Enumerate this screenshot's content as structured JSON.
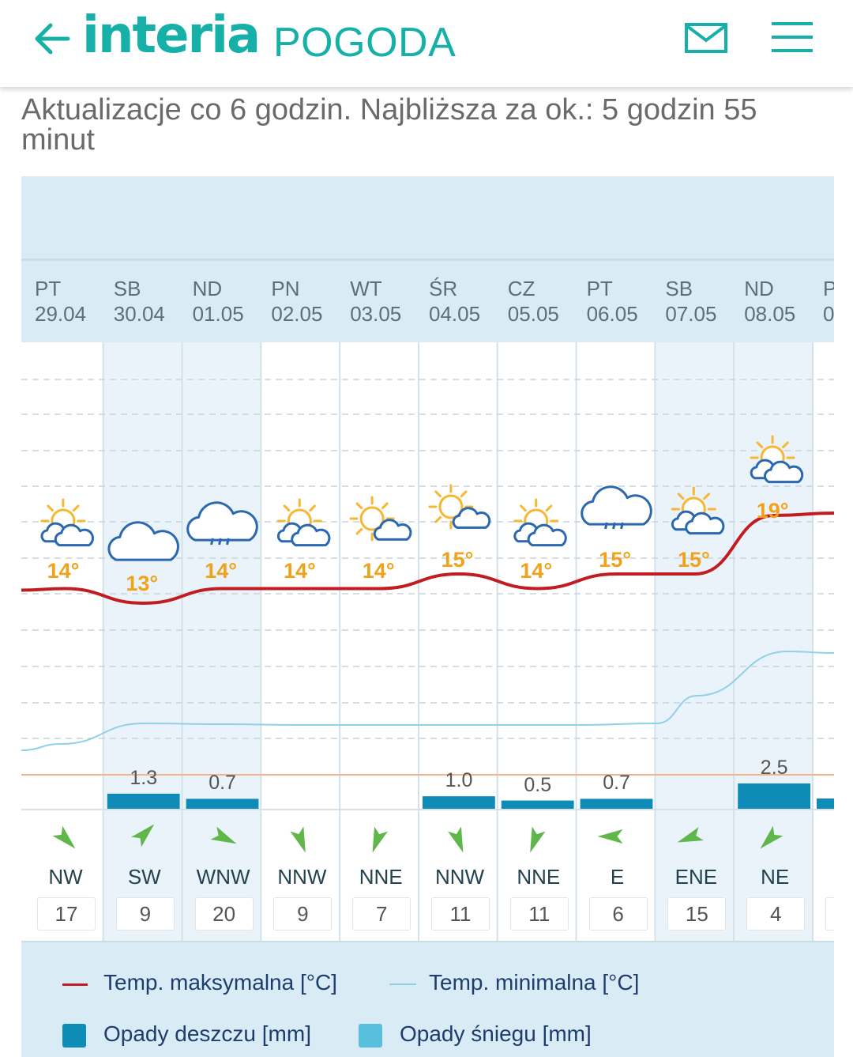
{
  "header": {
    "back_label": "←",
    "logo_text": "interia",
    "logo_suffix": "POGODA"
  },
  "update_text": "Aktualizacje co 6 godzin. Najbliższa za ok.: 5 godzin 55 minut",
  "colors": {
    "brand": "#17b0a9",
    "temp_max": "#c21c23",
    "temp_min": "#8fd0ea",
    "rain": "#0e8bb6",
    "snow": "#58bfdc",
    "temp_label": "#f0a21a"
  },
  "days": [
    {
      "dow": "PT",
      "date": "29.04",
      "icon": "sun-cloud-icon",
      "temp_label": "14°",
      "precip": "",
      "wind_dir": "NW",
      "wind_speed": "17"
    },
    {
      "dow": "SB",
      "date": "30.04",
      "icon": "cloud-icon",
      "temp_label": "13°",
      "precip": "1.3",
      "wind_dir": "SW",
      "wind_speed": "9"
    },
    {
      "dow": "ND",
      "date": "01.05",
      "icon": "rain-cloud-icon",
      "temp_label": "14°",
      "precip": "0.7",
      "wind_dir": "WNW",
      "wind_speed": "20"
    },
    {
      "dow": "PN",
      "date": "02.05",
      "icon": "sun-cloud-icon",
      "temp_label": "14°",
      "precip": "",
      "wind_dir": "NNW",
      "wind_speed": "9"
    },
    {
      "dow": "WT",
      "date": "03.05",
      "icon": "sun-small-cloud-icon",
      "temp_label": "14°",
      "precip": "",
      "wind_dir": "NNE",
      "wind_speed": "7"
    },
    {
      "dow": "ŚR",
      "date": "04.05",
      "icon": "sun-small-cloud-icon",
      "temp_label": "15°",
      "precip": "1.0",
      "wind_dir": "NNW",
      "wind_speed": "11"
    },
    {
      "dow": "CZ",
      "date": "05.05",
      "icon": "sun-cloud-icon",
      "temp_label": "14°",
      "precip": "0.5",
      "wind_dir": "NNE",
      "wind_speed": "11"
    },
    {
      "dow": "PT",
      "date": "06.05",
      "icon": "rain-cloud-icon",
      "temp_label": "15°",
      "precip": "0.7",
      "wind_dir": "E",
      "wind_speed": "6"
    },
    {
      "dow": "SB",
      "date": "07.05",
      "icon": "sun-cloud-icon",
      "temp_label": "15°",
      "precip": "",
      "wind_dir": "ENE",
      "wind_speed": "15"
    },
    {
      "dow": "ND",
      "date": "08.05",
      "icon": "sun-cloud-icon",
      "temp_label": "19°",
      "precip": "2.5",
      "wind_dir": "NE",
      "wind_speed": "4"
    },
    {
      "dow": "P",
      "date": "0",
      "icon": "sun-icon",
      "temp_label": "",
      "precip": "",
      "wind_dir": "",
      "wind_speed": ""
    }
  ],
  "legend": {
    "max_label": "Temp. maksymalna [°C]",
    "min_label": "Temp. minimalna [°C]",
    "rain_label": "Opady deszczu [mm]",
    "snow_label": "Opady śniegu [mm]"
  },
  "chart_data": {
    "type": "line",
    "categories": [
      "29.04",
      "30.04",
      "01.05",
      "02.05",
      "03.05",
      "04.05",
      "05.05",
      "06.05",
      "07.05",
      "08.05"
    ],
    "series": [
      {
        "name": "Temp. maksymalna [°C]",
        "values": [
          14,
          13,
          14,
          14,
          14,
          15,
          14,
          15,
          15,
          19
        ]
      },
      {
        "name": "Opady deszczu [mm]",
        "values": [
          0,
          1.3,
          0.7,
          0,
          0,
          1.0,
          0.5,
          0.7,
          0,
          2.5
        ]
      },
      {
        "name": "Opady śniegu [mm]",
        "values": [
          0,
          0,
          0,
          0,
          0,
          0,
          0,
          0,
          0,
          0
        ]
      }
    ],
    "wind_direction": [
      "NW",
      "SW",
      "WNW",
      "NNW",
      "NNE",
      "NNW",
      "NNE",
      "E",
      "ENE",
      "NE"
    ],
    "wind_speed": [
      17,
      9,
      20,
      9,
      7,
      11,
      11,
      6,
      15,
      4
    ],
    "weekend_columns": [
      "30.04",
      "01.05",
      "07.05",
      "08.05"
    ],
    "grid": true
  }
}
